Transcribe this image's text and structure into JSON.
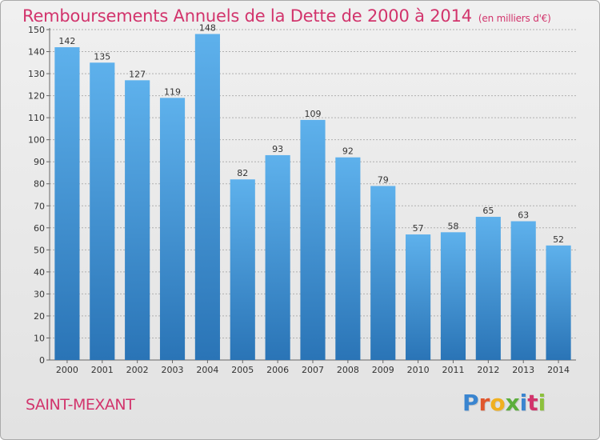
{
  "title": "Remboursements Annuels de la Dette de 2000 à 2014",
  "subtitle": "(en milliers d'€)",
  "commune": "SAINT-MEXANT",
  "logo": {
    "letters": [
      {
        "char": "P",
        "color": "#3a85d0"
      },
      {
        "char": "r",
        "color": "#e0562c"
      },
      {
        "char": "o",
        "color": "#f0b020"
      },
      {
        "char": "x",
        "color": "#5cae3c"
      },
      {
        "char": "i",
        "color": "#3a85d0"
      },
      {
        "char": "t",
        "color": "#d2346c"
      },
      {
        "char": "i",
        "color": "#8cc03c"
      }
    ]
  },
  "colors": {
    "accent": "#d2346c",
    "bar_top": "#5eb1ec",
    "bar_bottom": "#2a74b6"
  },
  "chart_data": {
    "type": "bar",
    "title": "Remboursements Annuels de la Dette de 2000 à 2014",
    "subtitle": "(en milliers d'€)",
    "categories": [
      "2000",
      "2001",
      "2002",
      "2003",
      "2004",
      "2005",
      "2006",
      "2007",
      "2008",
      "2009",
      "2010",
      "2011",
      "2012",
      "2013",
      "2014"
    ],
    "values": [
      142,
      135,
      127,
      119,
      148,
      82,
      93,
      109,
      92,
      79,
      57,
      58,
      65,
      63,
      52
    ],
    "ylim": [
      0,
      150
    ],
    "yticks": [
      0,
      10,
      20,
      30,
      40,
      50,
      60,
      70,
      80,
      90,
      100,
      110,
      120,
      130,
      140,
      150
    ],
    "grid": true,
    "data_labels": true
  }
}
